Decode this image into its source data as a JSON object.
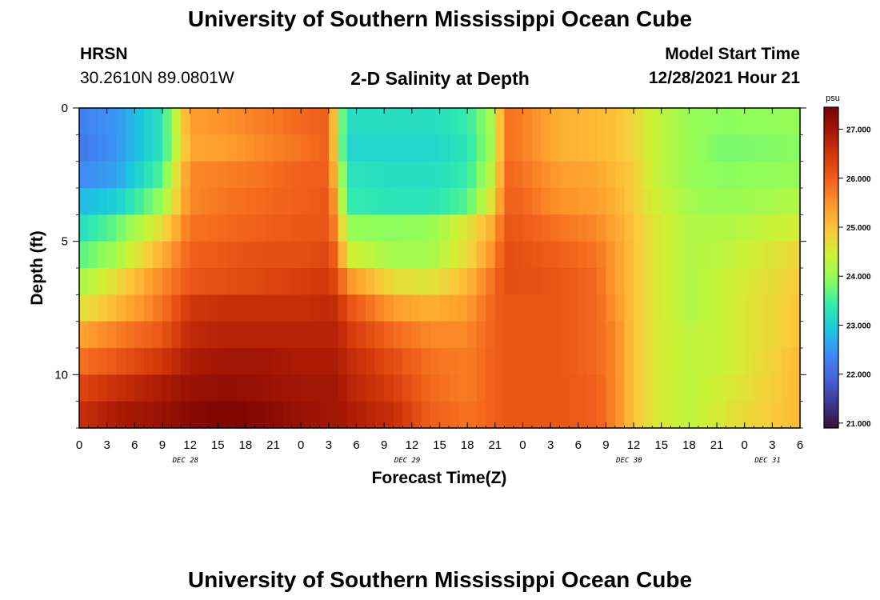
{
  "page": {
    "title": "University of Southern Mississippi Ocean Cube",
    "station": "HRSN",
    "coords": "30.2610N  89.0801W",
    "subtitle": "2-D Salinity at Depth",
    "model_start_label": "Model Start Time",
    "model_start_value": "12/28/2021 Hour 21",
    "footer_title": "University of Southern Mississippi Ocean Cube"
  },
  "colors": {
    "colormap": [
      "#30123b",
      "#3e378f",
      "#4662d8",
      "#3f8af5",
      "#1bc8e0",
      "#33ebab",
      "#8efd5b",
      "#cdf235",
      "#fbc93a",
      "#fe9a2c",
      "#f2641c",
      "#d63a0b",
      "#a71804",
      "#7a0403"
    ]
  },
  "chart_data": {
    "type": "heatmap",
    "xlabel": "Forecast Time(Z)",
    "ylabel": "Depth (ft)",
    "colorbar_label": "psu",
    "x_start_hour": 0,
    "x_end_hour": 78,
    "x_tick_labels": [
      "0",
      "3",
      "6",
      "9",
      "12",
      "15",
      "18",
      "21",
      "0",
      "3",
      "6",
      "9",
      "12",
      "15",
      "18",
      "21",
      "0",
      "3",
      "6",
      "9",
      "12",
      "15",
      "18",
      "21",
      "0",
      "3",
      "6"
    ],
    "date_labels": [
      {
        "label": "DEC 28",
        "hour": 11.5
      },
      {
        "label": "DEC 29",
        "hour": 35.5
      },
      {
        "label": "DEC 30",
        "hour": 59.5
      },
      {
        "label": "DEC 31",
        "hour": 74.5
      }
    ],
    "ylim": [
      0,
      12
    ],
    "y_tick_labels": [
      "0",
      "5",
      "10"
    ],
    "y_tick_values": [
      0,
      5,
      10
    ],
    "colorbar_range": [
      20.9,
      27.45
    ],
    "colorbar_ticks": [
      {
        "value": 21,
        "label": "21.000"
      },
      {
        "value": 22,
        "label": "22.000"
      },
      {
        "value": 23,
        "label": "23.000"
      },
      {
        "value": 24,
        "label": "24.000"
      },
      {
        "value": 25,
        "label": "25.000"
      },
      {
        "value": 26,
        "label": "26.000"
      },
      {
        "value": 27,
        "label": "27.000"
      }
    ],
    "time_step_hours": 1,
    "depth_levels_ft": [
      0.5,
      1.5,
      2.5,
      3.5,
      4.5,
      5.5,
      6.5,
      7.5,
      8.5,
      9.5,
      10.5,
      11.5
    ],
    "salinity_keyframes": {
      "hours": [
        0,
        4,
        9,
        12,
        16,
        20,
        24,
        27,
        28,
        29,
        34,
        38,
        42,
        45,
        46,
        47,
        52,
        56,
        58,
        60,
        62,
        66,
        70,
        78
      ],
      "rows": [
        [
          22.3,
          22.5,
          23.3,
          25.4,
          25.5,
          25.7,
          25.9,
          26.0,
          24.2,
          23.2,
          23.2,
          23.2,
          23.4,
          24.2,
          25.8,
          25.8,
          25.2,
          25.1,
          25.0,
          24.8,
          24.4,
          24.0,
          23.9,
          24.0
        ],
        [
          22.2,
          22.5,
          23.3,
          25.3,
          25.4,
          25.6,
          25.8,
          26.0,
          24.2,
          23.1,
          23.1,
          23.1,
          23.3,
          24.2,
          25.8,
          25.8,
          25.2,
          25.1,
          25.0,
          24.8,
          24.4,
          24.0,
          23.8,
          23.9
        ],
        [
          22.4,
          22.6,
          23.6,
          25.6,
          25.7,
          25.8,
          26.0,
          26.0,
          24.6,
          23.3,
          23.2,
          23.2,
          23.4,
          24.4,
          25.9,
          25.9,
          25.4,
          25.3,
          25.1,
          24.9,
          24.4,
          24.0,
          23.9,
          24.0
        ],
        [
          22.8,
          23.0,
          24.0,
          25.6,
          25.8,
          25.9,
          26.0,
          26.1,
          25.0,
          23.4,
          23.3,
          23.3,
          23.6,
          24.8,
          25.9,
          26.0,
          25.5,
          25.4,
          25.2,
          24.9,
          24.5,
          24.1,
          24.0,
          24.2
        ],
        [
          23.2,
          23.7,
          24.7,
          25.8,
          25.9,
          26.0,
          26.1,
          26.1,
          25.4,
          24.0,
          23.9,
          24.0,
          24.6,
          25.3,
          26.1,
          26.1,
          25.8,
          25.6,
          25.3,
          25.0,
          24.6,
          24.2,
          24.2,
          24.5
        ],
        [
          23.6,
          24.1,
          25.2,
          26.0,
          26.1,
          26.2,
          26.2,
          26.3,
          25.8,
          24.5,
          24.1,
          24.1,
          24.7,
          25.6,
          26.2,
          26.2,
          26.0,
          25.8,
          25.4,
          25.0,
          24.6,
          24.2,
          24.3,
          24.8
        ],
        [
          24.1,
          24.7,
          25.6,
          26.1,
          26.2,
          26.3,
          26.4,
          26.5,
          26.2,
          25.5,
          24.7,
          24.6,
          25.1,
          25.9,
          26.2,
          26.2,
          26.1,
          25.9,
          25.4,
          25.0,
          24.6,
          24.2,
          24.4,
          24.9
        ],
        [
          24.6,
          25.1,
          25.8,
          26.5,
          26.6,
          26.6,
          26.6,
          26.7,
          26.6,
          26.2,
          25.4,
          25.2,
          25.4,
          26.0,
          26.1,
          26.1,
          26.1,
          25.9,
          25.5,
          25.0,
          24.6,
          24.2,
          24.4,
          25.0
        ],
        [
          25.3,
          25.7,
          26.1,
          26.7,
          26.8,
          26.8,
          26.8,
          26.8,
          26.8,
          26.5,
          25.9,
          25.6,
          25.6,
          26.0,
          26.1,
          26.1,
          26.1,
          25.9,
          25.6,
          25.0,
          24.6,
          24.3,
          24.4,
          25.0
        ],
        [
          25.8,
          26.1,
          26.5,
          26.9,
          27.0,
          27.0,
          26.9,
          26.9,
          26.9,
          26.7,
          26.2,
          25.8,
          25.7,
          26.0,
          26.1,
          26.1,
          26.1,
          25.9,
          25.6,
          25.0,
          24.6,
          24.3,
          24.4,
          25.1
        ],
        [
          26.3,
          26.6,
          26.9,
          27.1,
          27.2,
          27.1,
          27.0,
          27.0,
          27.0,
          26.8,
          26.4,
          25.9,
          25.7,
          26.0,
          26.1,
          26.1,
          26.1,
          26.0,
          25.6,
          25.0,
          24.6,
          24.3,
          24.5,
          25.1
        ],
        [
          26.6,
          26.9,
          27.1,
          27.3,
          27.4,
          27.3,
          27.1,
          27.0,
          27.0,
          26.9,
          26.6,
          26.0,
          25.8,
          26.0,
          26.1,
          26.1,
          26.1,
          26.0,
          25.6,
          25.0,
          24.6,
          24.3,
          24.6,
          25.1
        ]
      ]
    }
  }
}
